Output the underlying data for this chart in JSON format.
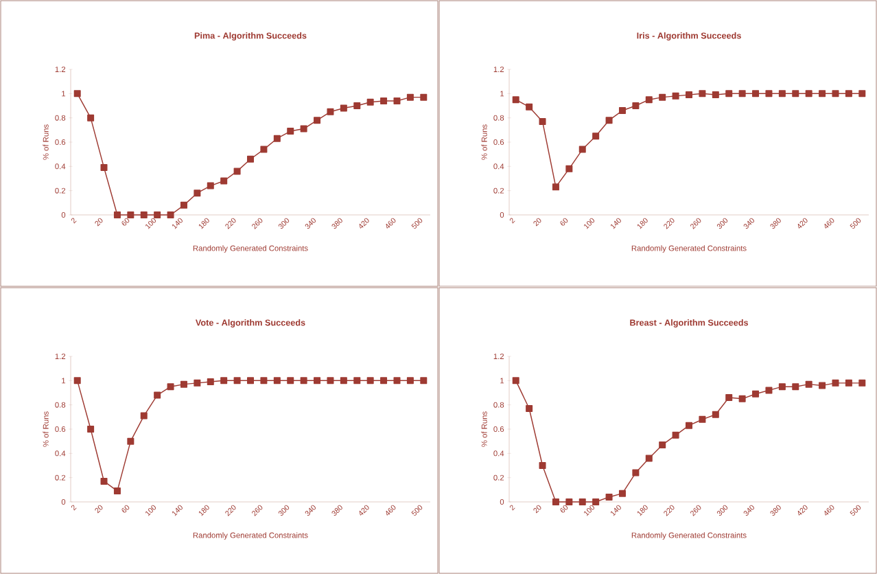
{
  "chart_data": [
    {
      "type": "line",
      "title": "Pima - Algorithm Succeeds",
      "xlabel": "Randomly Generated Constraints",
      "ylabel": "% of Runs",
      "marker": "square",
      "ylim": [
        0,
        1.2
      ],
      "yticks": [
        0,
        0.2,
        0.4,
        0.6,
        0.8,
        1,
        1.2
      ],
      "categories": [
        "2",
        null,
        "20",
        null,
        "60",
        null,
        "100",
        null,
        "140",
        null,
        "180",
        null,
        "220",
        null,
        "260",
        null,
        "300",
        null,
        "340",
        null,
        "380",
        null,
        "420",
        null,
        "460",
        null,
        "500"
      ],
      "series": [
        {
          "color": "#9e3a32",
          "values": [
            1,
            0.8,
            0.39,
            0,
            0,
            0,
            0,
            0,
            0.08,
            0.18,
            0.24,
            0.28,
            0.36,
            0.46,
            0.54,
            0.63,
            0.69,
            0.71,
            0.78,
            0.85,
            0.88,
            0.9,
            0.93,
            0.94,
            0.94,
            0.97,
            0.97
          ]
        }
      ]
    },
    {
      "type": "line",
      "title": "Iris - Algorithm Succeeds",
      "xlabel": "Randomly Generated Constraints",
      "ylabel": "% of Runs",
      "marker": "square",
      "ylim": [
        0,
        1.2
      ],
      "yticks": [
        0,
        0.2,
        0.4,
        0.6,
        0.8,
        1,
        1.2
      ],
      "categories": [
        "2",
        null,
        "20",
        null,
        "60",
        null,
        "100",
        null,
        "140",
        null,
        "180",
        null,
        "220",
        null,
        "260",
        null,
        "300",
        null,
        "340",
        null,
        "380",
        null,
        "420",
        null,
        "460",
        null,
        "500"
      ],
      "series": [
        {
          "color": "#9e3a32",
          "values": [
            0.95,
            0.89,
            0.77,
            0.23,
            0.38,
            0.54,
            0.65,
            0.78,
            0.86,
            0.9,
            0.95,
            0.97,
            0.98,
            0.99,
            1,
            0.99,
            1,
            1,
            1,
            1,
            1,
            1,
            1,
            1,
            1,
            1,
            1
          ]
        }
      ]
    },
    {
      "type": "line",
      "title": "Vote - Algorithm Succeeds",
      "xlabel": "Randomly Generated Constraints",
      "ylabel": "% of Runs",
      "marker": "square",
      "ylim": [
        0,
        1.2
      ],
      "yticks": [
        0,
        0.2,
        0.4,
        0.6,
        0.8,
        1,
        1.2
      ],
      "categories": [
        "2",
        null,
        "20",
        null,
        "60",
        null,
        "100",
        null,
        "140",
        null,
        "180",
        null,
        "220",
        null,
        "260",
        null,
        "300",
        null,
        "340",
        null,
        "380",
        null,
        "420",
        null,
        "460",
        null,
        "500"
      ],
      "series": [
        {
          "color": "#9e3a32",
          "values": [
            1,
            0.6,
            0.17,
            0.09,
            0.5,
            0.71,
            0.88,
            0.95,
            0.97,
            0.98,
            0.99,
            1,
            1,
            1,
            1,
            1,
            1,
            1,
            1,
            1,
            1,
            1,
            1,
            1,
            1,
            1,
            1
          ]
        }
      ]
    },
    {
      "type": "line",
      "title": "Breast - Algorithm Succeeds",
      "xlabel": "Randomly Generated Constraints",
      "ylabel": "% of Runs",
      "marker": "square",
      "ylim": [
        0,
        1.2
      ],
      "yticks": [
        0,
        0.2,
        0.4,
        0.6,
        0.8,
        1,
        1.2
      ],
      "categories": [
        "2",
        null,
        "20",
        null,
        "60",
        null,
        "100",
        null,
        "140",
        null,
        "180",
        null,
        "220",
        null,
        "260",
        null,
        "300",
        null,
        "340",
        null,
        "380",
        null,
        "420",
        null,
        "460",
        null,
        "500"
      ],
      "series": [
        {
          "color": "#9e3a32",
          "values": [
            1,
            0.77,
            0.3,
            0,
            0,
            0,
            0,
            0.04,
            0.07,
            0.24,
            0.36,
            0.47,
            0.55,
            0.63,
            0.68,
            0.72,
            0.86,
            0.85,
            0.89,
            0.92,
            0.95,
            0.95,
            0.97,
            0.96,
            0.98,
            0.98,
            0.98
          ]
        }
      ]
    }
  ]
}
